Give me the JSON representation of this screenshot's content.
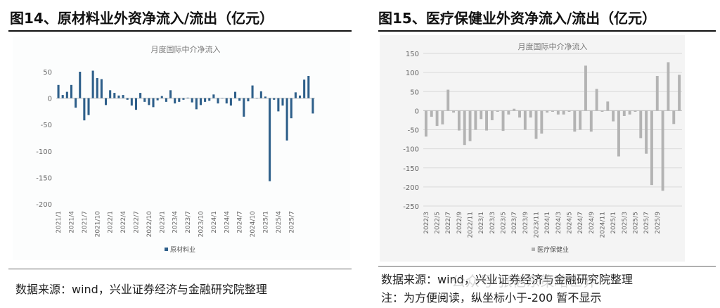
{
  "left": {
    "figure_title": "图14、原材料业外资净流入/流出（亿元）",
    "source_note": "数据来源：wind，兴业证券经济与金融研究院整理",
    "chart_data": {
      "type": "bar",
      "title": "月度国际中介净流入",
      "series": [
        {
          "name": "原材料业",
          "color": "#2e5f8a",
          "values": [
            25,
            6,
            12,
            25,
            -18,
            50,
            -42,
            -32,
            52,
            38,
            36,
            -13,
            15,
            10,
            5,
            6,
            -3,
            -14,
            -22,
            10,
            -7,
            -13,
            -17,
            -4,
            4,
            -7,
            15,
            -10,
            -7,
            -3,
            1,
            -8,
            -21,
            -13,
            -7,
            -5,
            7,
            -10,
            0,
            -10,
            -14,
            12,
            -5,
            -35,
            -6,
            24,
            0,
            13,
            3,
            -157,
            -3,
            -25,
            -14,
            -80,
            -38,
            11,
            5,
            35,
            42,
            -29
          ]
        }
      ],
      "x_tick_labels": [
        "2021/1",
        "2021/4",
        "2021/7",
        "2021/10",
        "2022/1",
        "2022/4",
        "2022/7",
        "2022/10",
        "2023/1",
        "2023/4",
        "2023/7",
        "2023/10",
        "2024/1",
        "2024/4",
        "2024/7",
        "2024/10",
        "2025/1",
        "2025/4",
        "2025/7"
      ],
      "ylim": [
        -200,
        50
      ],
      "y_ticks": [
        50,
        0,
        -50,
        -100,
        -150,
        -200
      ],
      "legend_position": "bottom-center"
    }
  },
  "right": {
    "figure_title": "图15、医疗保健业外资净流入/流出（亿元）",
    "source_note": "数据来源：wind，兴业证券经济与金融研究院整理",
    "note": "注：为方便阅读，纵坐标小于-200 暂不显示",
    "watermark": "公众号·张忆东策略世界",
    "chart_data": {
      "type": "bar",
      "title": "月度国际中介净流入",
      "series": [
        {
          "name": "医疗保健业",
          "color": "#b3b3b3",
          "values": [
            -68,
            -16,
            -40,
            -36,
            55,
            -5,
            -52,
            -90,
            -80,
            -50,
            -22,
            -52,
            -25,
            -3,
            -53,
            -10,
            5,
            -18,
            -50,
            -18,
            -74,
            -60,
            -5,
            -3,
            -10,
            -10,
            -3,
            -55,
            -50,
            118,
            -55,
            57,
            -3,
            24,
            -28,
            -120,
            -14,
            -10,
            -3,
            -72,
            -113,
            -195,
            91,
            -210,
            127,
            -35,
            94
          ]
        }
      ],
      "x_tick_labels": [
        "2022/3",
        "2022/5",
        "2022/7",
        "2022/9",
        "2022/11",
        "2023/1",
        "2023/3",
        "2023/5",
        "2023/7",
        "2023/9",
        "2023/11",
        "2024/1",
        "2024/3",
        "2024/5",
        "2024/7",
        "2024/9",
        "2024/11",
        "2025/1",
        "2025/3",
        "2025/5",
        "2025/7",
        "2025/9"
      ],
      "ylim": [
        -250,
        150
      ],
      "y_ticks": [
        150,
        100,
        50,
        0,
        -50,
        -100,
        -150,
        -200,
        -250
      ],
      "legend_position": "bottom-center"
    }
  }
}
